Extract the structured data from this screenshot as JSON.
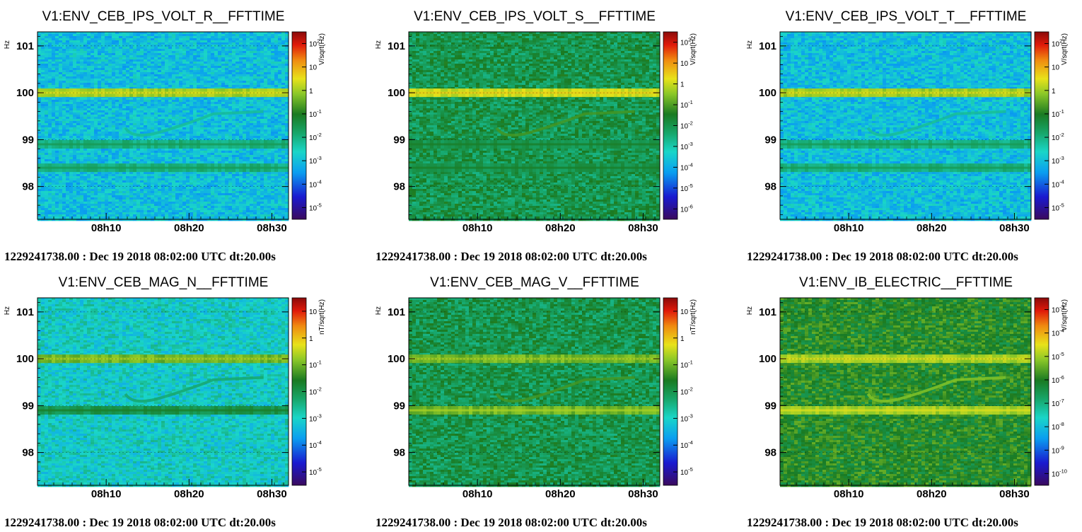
{
  "chart_data": [
    {
      "type": "heatmap",
      "title": "V1:ENV_CEB_IPS_VOLT_R__FFTTIME",
      "ylabel": "Hz",
      "y_ticks": [
        "98",
        "99",
        "100",
        "101"
      ],
      "x_ticks": [
        "08h10",
        "08h20",
        "08h30"
      ],
      "colorbar_label": "V/sqrt(Hz)",
      "colorbar_ticks": [
        "10^2",
        "10",
        "1",
        "10^-1",
        "10^-2",
        "10^-3",
        "10^-4",
        "10^-5"
      ],
      "footer": "1229241738.00 : Dec 19 2018 08:02:00 UTC dt:20.00s",
      "background_level": "10^-3",
      "lines": [
        {
          "y": 100.0,
          "level": "1"
        },
        {
          "y": 98.4,
          "level": "10^-2"
        },
        {
          "y": 98.9,
          "level": "10^-2"
        }
      ]
    },
    {
      "type": "heatmap",
      "title": "V1:ENV_CEB_IPS_VOLT_S__FFTTIME",
      "ylabel": "Hz",
      "y_ticks": [
        "98",
        "99",
        "100",
        "101"
      ],
      "x_ticks": [
        "08h10",
        "08h20",
        "08h30"
      ],
      "colorbar_label": "V/sqrt(Hz)",
      "colorbar_ticks": [
        "10^2",
        "10",
        "1",
        "10^-1",
        "10^-2",
        "10^-3",
        "10^-4",
        "10^-5",
        "10^-6"
      ],
      "footer": "1229241738.00 : Dec 19 2018 08:02:00 UTC dt:20.00s",
      "background_level": "10^-2",
      "lines": [
        {
          "y": 100.0,
          "level": "1"
        },
        {
          "y": 98.4,
          "level": "10^-2"
        },
        {
          "y": 98.9,
          "level": "10^-2"
        }
      ]
    },
    {
      "type": "heatmap",
      "title": "V1:ENV_CEB_IPS_VOLT_T__FFTTIME",
      "ylabel": "Hz",
      "y_ticks": [
        "98",
        "99",
        "100",
        "101"
      ],
      "x_ticks": [
        "08h10",
        "08h20",
        "08h30"
      ],
      "colorbar_label": "V/sqrt(Hz)",
      "colorbar_ticks": [
        "10^2",
        "10",
        "1",
        "10^-1",
        "10^-2",
        "10^-3",
        "10^-4",
        "10^-5"
      ],
      "footer": "1229241738.00 : Dec 19 2018 08:02:00 UTC dt:20.00s",
      "background_level": "10^-3",
      "lines": [
        {
          "y": 100.0,
          "level": "1"
        },
        {
          "y": 98.4,
          "level": "10^-2"
        },
        {
          "y": 98.9,
          "level": "10^-2"
        }
      ]
    },
    {
      "type": "heatmap",
      "title": "V1:ENV_CEB_MAG_N__FFTTIME",
      "ylabel": "Hz",
      "y_ticks": [
        "98",
        "99",
        "100",
        "101"
      ],
      "x_ticks": [
        "08h10",
        "08h20",
        "08h30"
      ],
      "colorbar_label": "nT/sqrt(Hz)",
      "colorbar_ticks": [
        "10",
        "1",
        "10^-1",
        "10^-2",
        "10^-3",
        "10^-4",
        "10^-5"
      ],
      "footer": "1229241738.00 : Dec 19 2018 08:02:00 UTC dt:20.00s",
      "background_level": "10^-3",
      "lines": [
        {
          "y": 100.0,
          "level": "10^-1"
        },
        {
          "y": 98.9,
          "level": "10^-2"
        }
      ]
    },
    {
      "type": "heatmap",
      "title": "V1:ENV_CEB_MAG_V__FFTTIME",
      "ylabel": "Hz",
      "y_ticks": [
        "98",
        "99",
        "100",
        "101"
      ],
      "x_ticks": [
        "08h10",
        "08h20",
        "08h30"
      ],
      "colorbar_label": "nT/sqrt(Hz)",
      "colorbar_ticks": [
        "10",
        "1",
        "10^-1",
        "10^-2",
        "10^-3",
        "10^-4",
        "10^-5"
      ],
      "footer": "1229241738.00 : Dec 19 2018 08:02:00 UTC dt:20.00s",
      "background_level": "10^-2",
      "lines": [
        {
          "y": 100.0,
          "level": "10^-1"
        },
        {
          "y": 98.9,
          "level": "10^-1"
        }
      ]
    },
    {
      "type": "heatmap",
      "title": "V1:ENV_IB_ELECTRIC__FFTTIME",
      "ylabel": "Hz",
      "y_ticks": [
        "98",
        "99",
        "100",
        "101"
      ],
      "x_ticks": [
        "08h10",
        "08h20",
        "08h30"
      ],
      "colorbar_label": "V/sqrt(Hz)",
      "colorbar_ticks": [
        "10^-3",
        "10^-4",
        "10^-5",
        "10^-6",
        "10^-7",
        "10^-8",
        "10^-9",
        "10^-10"
      ],
      "footer": "1229241738.00 : Dec 19 2018 08:02:00 UTC dt:20.00s",
      "background_level": "10^-6",
      "lines": [
        {
          "y": 100.0,
          "level": "10^-5"
        },
        {
          "y": 98.9,
          "level": "10^-5"
        }
      ]
    }
  ]
}
